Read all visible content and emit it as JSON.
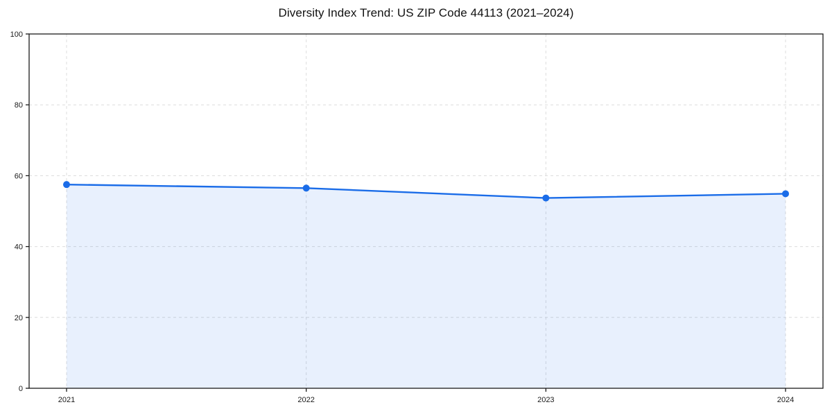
{
  "chart_data": {
    "type": "area",
    "title": "Diversity Index Trend: US ZIP Code 44113 (2021–2024)",
    "categories": [
      "2021",
      "2022",
      "2023",
      "2024"
    ],
    "values": [
      57.5,
      56.5,
      53.7,
      54.9
    ],
    "xlabel": "",
    "ylabel": "",
    "ylim": [
      0,
      100
    ],
    "yticks": [
      0,
      20,
      40,
      60,
      80,
      100
    ],
    "grid": true,
    "grid_style": "dashed",
    "legend": "none",
    "marker": "circle",
    "colors": {
      "line": "#1a6ce8",
      "marker": "#1a6ce8",
      "fill": "#1a6ce8",
      "fill_opacity": 0.1,
      "grid": "#dcdcdc",
      "axis": "#1a1a1a",
      "tick_label": "#1a1a1a",
      "background": "#ffffff"
    }
  }
}
